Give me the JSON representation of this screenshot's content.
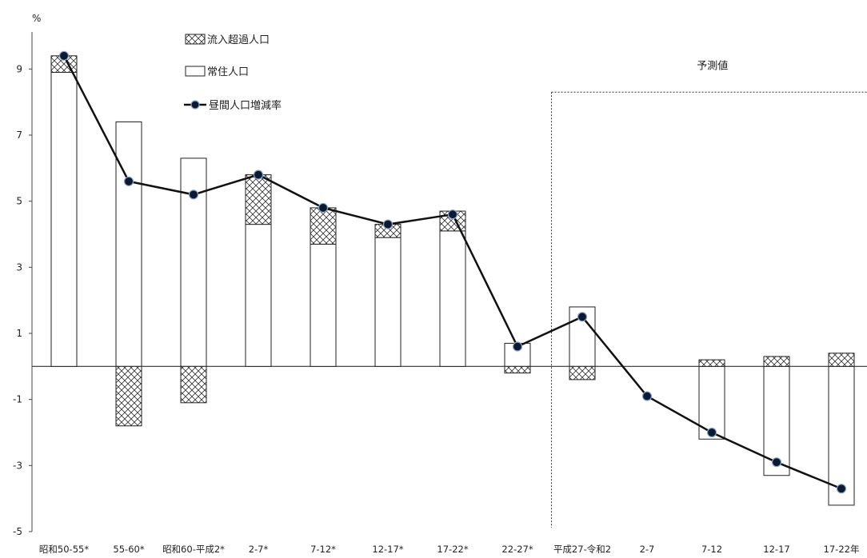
{
  "chart_data": {
    "type": "bar",
    "yunit": "%",
    "ylim": [
      -5,
      10
    ],
    "yticks": [
      9,
      7,
      5,
      3,
      1,
      -1,
      -3,
      -5
    ],
    "categories": [
      "昭和50-55*",
      "55-60*",
      "昭和60-平成2*",
      "2-7*",
      "7-12*",
      "12-17*",
      "17-22*",
      "22-27*",
      "平成27-令和2",
      "2-7",
      "7-12",
      "12-17",
      "17-22年"
    ],
    "series": [
      {
        "name": "流入超過人口",
        "role": "stacked-bar-hatched",
        "values": [
          0.5,
          -1.8,
          -1.1,
          1.5,
          1.1,
          0.4,
          0.6,
          -0.2,
          -0.4,
          0.0,
          0.2,
          0.3,
          0.4
        ]
      },
      {
        "name": "常住人口",
        "role": "stacked-bar-open",
        "values": [
          8.9,
          7.4,
          6.3,
          4.3,
          3.7,
          3.9,
          4.1,
          0.7,
          1.8,
          0.0,
          -2.2,
          -3.3,
          -4.2
        ]
      },
      {
        "name": "昼間人口増減率",
        "role": "line-with-markers",
        "values": [
          9.4,
          5.6,
          5.2,
          5.8,
          4.8,
          4.3,
          4.6,
          0.6,
          1.5,
          -0.9,
          -2.0,
          -2.9,
          -3.7
        ]
      }
    ],
    "legend_position": "top-left",
    "annotation": {
      "label": "予測値",
      "from_category_index": 8
    }
  }
}
